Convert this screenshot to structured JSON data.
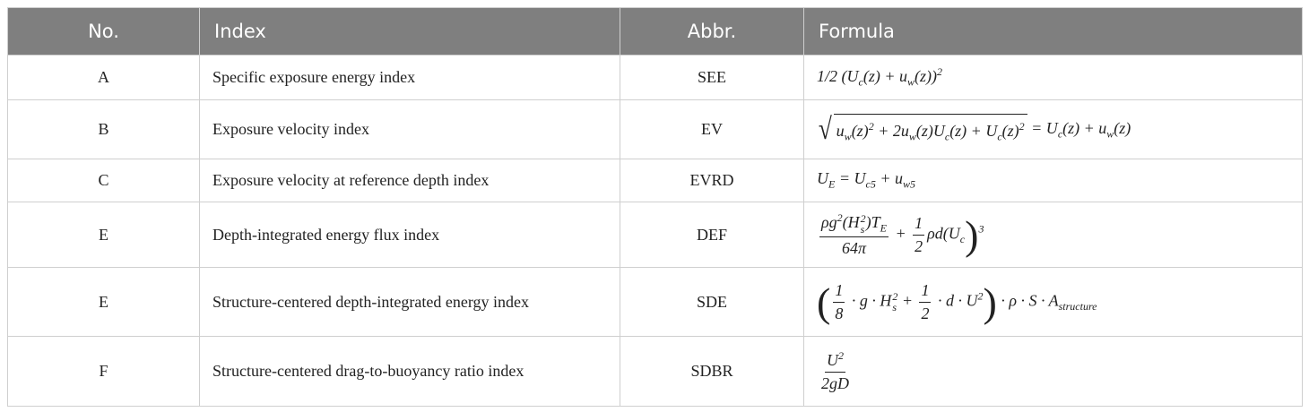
{
  "table": {
    "header": [
      "No.",
      "Index",
      "Abbr.",
      "Formula"
    ],
    "rows": [
      [
        "A",
        "Specific exposure energy index",
        "SEE",
        [
          "1/2  (U",
          {
            "sub": "c"
          },
          "(z)  +  u",
          {
            "sub": "w"
          },
          "(z))",
          {
            "sup": "2"
          }
        ]
      ],
      [
        "B",
        "Exposure velocity index",
        "EV",
        [
          {
            "sqrt": [
              "u",
              {
                "sub": "w"
              },
              "(z)",
              {
                "sup": "2"
              },
              " + 2u",
              {
                "sub": "w"
              },
              "(z)U",
              {
                "sub": "c"
              },
              "(z) +  U",
              {
                "sub": "c"
              },
              "(z)",
              {
                "sup": "2"
              }
            ]
          },
          " = U",
          {
            "sub": "c"
          },
          "(z) + u",
          {
            "sub": "w"
          },
          "(z)"
        ]
      ],
      [
        "C",
        "Exposure velocity at reference depth index",
        "EVRD",
        [
          "U",
          {
            "sub": "E"
          },
          " = U",
          {
            "sub": "c5"
          },
          " + u",
          {
            "sub": "w5"
          }
        ]
      ],
      [
        "E",
        "Depth-integrated energy flux index",
        "DEF",
        [
          {
            "frac": [
              [
                "ρg",
                {
                  "sup": "2"
                },
                "(H",
                {
                  "sub": "s",
                  "sup": "2"
                },
                ")T",
                {
                  "sub": "E"
                }
              ],
              [
                "64π"
              ]
            ]
          },
          " + ",
          {
            "frac": [
              [
                "1"
              ],
              [
                "2"
              ]
            ]
          },
          "ρd(U",
          {
            "sub": "c"
          },
          ")",
          {
            "sup": "3"
          }
        ]
      ],
      [
        "E",
        "Structure-centered depth-integrated energy index",
        "SDE",
        [
          "(",
          {
            "frac": [
              [
                "1"
              ],
              [
                "8"
              ]
            ]
          },
          " · g · H",
          {
            "sub": "s",
            "sup": "2"
          },
          " + ",
          {
            "frac": [
              [
                "1"
              ],
              [
                "2"
              ]
            ]
          },
          " · d · U",
          {
            "sup": "2"
          },
          ")",
          " · ρ · S · A",
          {
            "sub": "structure"
          }
        ]
      ],
      [
        "F",
        "Structure-centered drag-to-buoyancy ratio index",
        "SDBR",
        [
          {
            "frac": [
              [
                "U",
                {
                  "sup": "2"
                }
              ],
              [
                "2gD"
              ]
            ]
          }
        ]
      ]
    ]
  }
}
